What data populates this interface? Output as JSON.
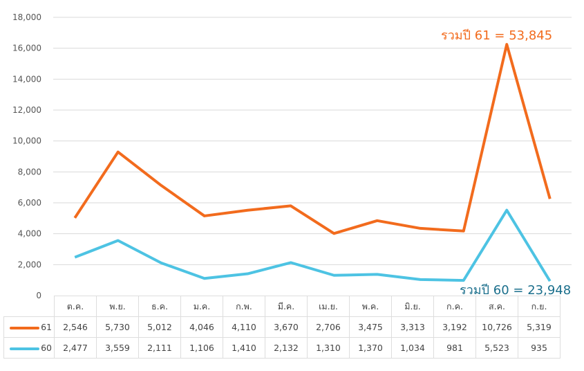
{
  "chart_data": {
    "type": "line",
    "categories": [
      "ต.ค.",
      "พ.ย.",
      "ธ.ค.",
      "ม.ค.",
      "ก.พ.",
      "มี.ค.",
      "เม.ย.",
      "พ.ค.",
      "มิ.ย.",
      "ก.ค.",
      "ส.ค.",
      "ก.ย."
    ],
    "series": [
      {
        "name": "61",
        "color": "#f26b1d",
        "values": [
          2546,
          5730,
          5012,
          4046,
          4110,
          3670,
          2706,
          3475,
          3313,
          3192,
          10726,
          5319
        ],
        "stacked_on": "60"
      },
      {
        "name": "60",
        "color": "#4dc3e3",
        "values": [
          2477,
          3559,
          2111,
          1106,
          1410,
          2132,
          1310,
          1370,
          1034,
          981,
          5523,
          935
        ]
      }
    ],
    "ylim": [
      0,
      18000
    ],
    "yticks": [
      "0",
      "2,000",
      "4,000",
      "6,000",
      "8,000",
      "10,000",
      "12,000",
      "14,000",
      "16,000",
      "18,000"
    ],
    "grid": true,
    "legend": "data-table",
    "annotations": [
      {
        "text": "รวมปี 61 = 53,845",
        "color": "#f26b1d"
      },
      {
        "text": "รวมปี 60 = 23,948",
        "color": "#1b6f8c"
      }
    ]
  }
}
